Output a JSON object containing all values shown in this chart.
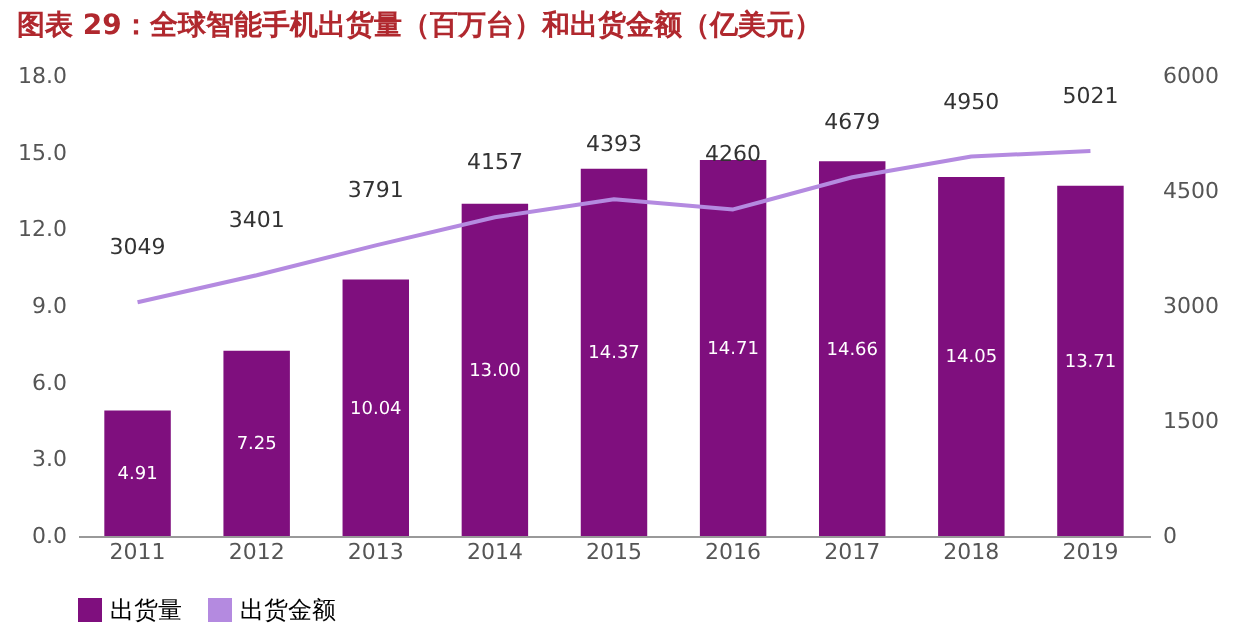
{
  "chart_data": {
    "type": "bar",
    "title": "图表 29：全球智能手机出货量（百万台）和出货金额（亿美元）",
    "categories": [
      "2011",
      "2012",
      "2013",
      "2014",
      "2015",
      "2016",
      "2017",
      "2018",
      "2019"
    ],
    "series": [
      {
        "name": "出货量",
        "color": "#7f0f7e",
        "values": [
          4.91,
          7.25,
          10.04,
          13.0,
          14.37,
          14.71,
          14.66,
          14.05,
          13.71
        ],
        "value_labels": [
          "4.91",
          "7.25",
          "10.04",
          "13.00",
          "14.37",
          "14.71",
          "14.66",
          "14.05",
          "13.71"
        ]
      },
      {
        "name": "出货金额",
        "type": "line",
        "axis": "y2",
        "color": "#b48ae0",
        "values": [
          3049,
          3401,
          3791,
          4157,
          4393,
          4260,
          4679,
          4950,
          5021
        ],
        "value_labels": [
          "3049",
          "3401",
          "3791",
          "4157",
          "4393",
          "4260",
          "4679",
          "4950",
          "5021"
        ]
      }
    ],
    "ylim": [
      0,
      18
    ],
    "yticks": [
      {
        "value": 0,
        "label": "0.0"
      },
      {
        "value": 3,
        "label": "3.0"
      },
      {
        "value": 6,
        "label": "6.0"
      },
      {
        "value": 9,
        "label": "9.0"
      },
      {
        "value": 12,
        "label": "12.0"
      },
      {
        "value": 15,
        "label": "15.0"
      },
      {
        "value": 18,
        "label": "18.0"
      }
    ],
    "y2lim": [
      0,
      6000
    ],
    "y2ticks": [
      0,
      1500,
      3000,
      4500,
      6000
    ],
    "grid": false,
    "legend": "bottom"
  }
}
